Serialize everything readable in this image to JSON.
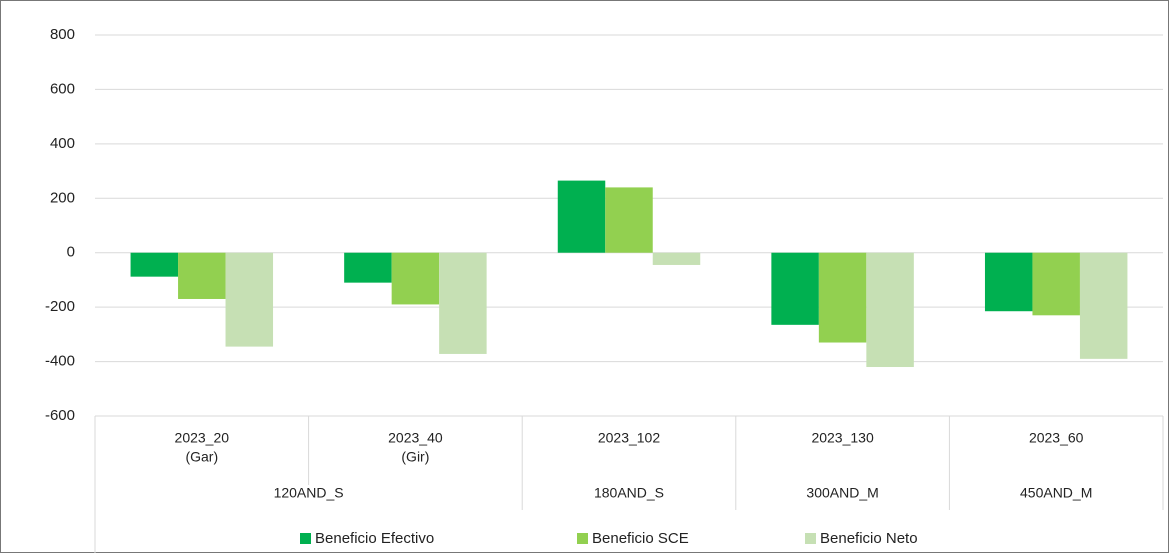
{
  "chart_data": {
    "type": "bar",
    "groups": [
      {
        "name": "120AND_S",
        "categories": [
          [
            "2023_20",
            "(Gar)"
          ],
          [
            "2023_40",
            "(Gir)"
          ]
        ]
      },
      {
        "name": "180AND_S",
        "categories": [
          [
            "2023_102"
          ]
        ]
      },
      {
        "name": "300AND_M",
        "categories": [
          [
            "2023_130"
          ]
        ]
      },
      {
        "name": "450AND_M",
        "categories": [
          [
            "2023_60"
          ]
        ]
      }
    ],
    "series": [
      {
        "name": "Beneficio Efectivo",
        "color": "#00b050",
        "values": [
          -88,
          -110,
          265,
          -265,
          -215
        ]
      },
      {
        "name": "Beneficio SCE",
        "color": "#92d050",
        "values": [
          -170,
          -190,
          240,
          -330,
          -230
        ]
      },
      {
        "name": "Beneficio Neto",
        "color": "#c6e0b4",
        "values": [
          -345,
          -372,
          -45,
          -420,
          -390
        ]
      }
    ],
    "ylim": [
      -600,
      800
    ],
    "yticks": [
      -600,
      -400,
      -200,
      0,
      200,
      400,
      600,
      800
    ],
    "grid": true,
    "legend": "bottom"
  }
}
